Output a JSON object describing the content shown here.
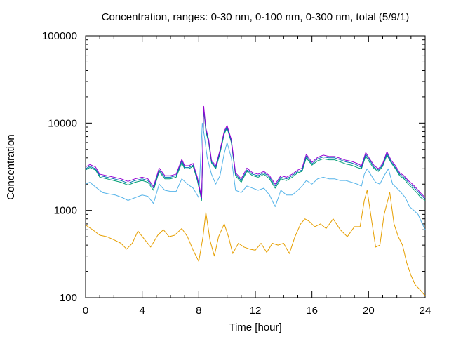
{
  "chart_data": {
    "type": "line",
    "title": "Concentration, ranges: 0-30 nm, 0-100 nm, 0-300 nm, total (5/9/1)",
    "xlabel": "Time [hour]",
    "ylabel": "Concentration",
    "xlim": [
      0,
      24
    ],
    "ylim": [
      100,
      100000
    ],
    "yscale": "log",
    "grid": false,
    "legend": "none",
    "x_ticks": [
      0,
      4,
      8,
      12,
      16,
      20,
      24
    ],
    "y_ticks": [
      100,
      1000,
      10000,
      100000
    ],
    "x_tick_labels": [
      "0",
      "4",
      "8",
      "12",
      "16",
      "20",
      "24"
    ],
    "y_tick_labels": [
      "100",
      "1000",
      "10000",
      "100000"
    ],
    "series": [
      {
        "color": "#e69f00",
        "x": [
          0,
          0.5,
          1,
          1.5,
          2,
          2.5,
          2.9,
          3.3,
          3.7,
          4.1,
          4.6,
          5.1,
          5.5,
          5.9,
          6.3,
          6.8,
          7.2,
          7.6,
          8.0,
          8.3,
          8.5,
          8.8,
          9.1,
          9.4,
          9.8,
          10.1,
          10.4,
          10.8,
          11.2,
          11.6,
          12.0,
          12.4,
          12.8,
          13.2,
          13.6,
          14.0,
          14.4,
          14.8,
          15.2,
          15.5,
          15.8,
          16.2,
          16.6,
          17.0,
          17.5,
          18.0,
          18.5,
          19.0,
          19.4,
          19.7,
          19.9,
          20.2,
          20.5,
          20.8,
          21.1,
          21.5,
          21.8,
          22.1,
          22.4,
          22.7,
          23.0,
          23.3,
          23.6,
          24.0
        ],
        "y": [
          680,
          600,
          520,
          500,
          460,
          420,
          360,
          420,
          580,
          480,
          380,
          520,
          600,
          500,
          520,
          620,
          500,
          350,
          260,
          500,
          950,
          450,
          300,
          500,
          700,
          500,
          320,
          420,
          380,
          360,
          350,
          420,
          330,
          420,
          400,
          420,
          320,
          500,
          700,
          800,
          750,
          650,
          700,
          620,
          800,
          600,
          500,
          650,
          650,
          1300,
          1700,
          800,
          380,
          400,
          900,
          1600,
          700,
          500,
          400,
          250,
          180,
          140,
          125,
          105
        ]
      },
      {
        "color": "#56b4e9",
        "x": [
          0,
          0.3,
          0.8,
          1.2,
          1.6,
          2.1,
          2.6,
          3.0,
          3.5,
          4.0,
          4.4,
          4.8,
          5.2,
          5.6,
          6.0,
          6.4,
          6.8,
          7.2,
          7.6,
          8.0,
          8.25,
          8.4,
          8.6,
          8.9,
          9.2,
          9.5,
          9.8,
          10.0,
          10.3,
          10.6,
          11.0,
          11.4,
          11.8,
          12.2,
          12.6,
          13.0,
          13.4,
          13.8,
          14.2,
          14.6,
          15.0,
          15.3,
          15.6,
          16.0,
          16.4,
          16.8,
          17.2,
          17.6,
          18.0,
          18.4,
          18.8,
          19.2,
          19.5,
          19.7,
          19.9,
          20.2,
          20.5,
          20.8,
          21.1,
          21.4,
          21.7,
          22.0,
          22.3,
          22.6,
          22.9,
          23.2,
          23.5,
          23.8,
          24.0
        ],
        "y": [
          2000,
          2100,
          1800,
          1600,
          1550,
          1500,
          1400,
          1300,
          1400,
          1500,
          1450,
          1200,
          2000,
          1700,
          1650,
          1650,
          2300,
          2000,
          1800,
          1400,
          10000,
          7000,
          4000,
          2600,
          2000,
          2500,
          4500,
          6000,
          4000,
          1700,
          1600,
          1900,
          1800,
          1700,
          1800,
          1500,
          1100,
          1700,
          1500,
          1500,
          1700,
          1900,
          2200,
          2000,
          2300,
          2400,
          2300,
          2300,
          2200,
          2200,
          2100,
          2000,
          1900,
          2600,
          3000,
          2500,
          2100,
          2000,
          2500,
          3000,
          2000,
          1800,
          1600,
          1400,
          1100,
          1000,
          900,
          700,
          600
        ]
      },
      {
        "color": "#009e73",
        "x": [
          0,
          0.3,
          0.7,
          1.0,
          1.5,
          2.0,
          2.5,
          3.0,
          3.5,
          4.0,
          4.4,
          4.8,
          5.2,
          5.6,
          6.0,
          6.4,
          6.8,
          7.0,
          7.3,
          7.6,
          7.9,
          8.2,
          8.35,
          8.5,
          8.7,
          8.9,
          9.2,
          9.5,
          9.8,
          10.0,
          10.3,
          10.6,
          11.0,
          11.4,
          11.8,
          12.2,
          12.6,
          13.0,
          13.4,
          13.8,
          14.2,
          14.6,
          15.0,
          15.3,
          15.6,
          16.0,
          16.4,
          16.8,
          17.2,
          17.6,
          18.0,
          18.4,
          18.8,
          19.2,
          19.5,
          19.8,
          20.1,
          20.4,
          20.7,
          21.0,
          21.3,
          21.6,
          21.9,
          22.2,
          22.5,
          22.8,
          23.1,
          23.4,
          23.7,
          24.0
        ],
        "y": [
          2900,
          3100,
          2900,
          2400,
          2300,
          2200,
          2100,
          1950,
          2100,
          2200,
          2100,
          1700,
          2800,
          2300,
          2300,
          2400,
          3500,
          3000,
          3000,
          3200,
          2200,
          1300,
          14500,
          8000,
          6000,
          3500,
          3000,
          4500,
          7500,
          8800,
          6000,
          2500,
          2100,
          2800,
          2500,
          2400,
          2600,
          2300,
          1800,
          2300,
          2200,
          2400,
          2700,
          2800,
          4000,
          3300,
          3700,
          3900,
          3800,
          3800,
          3600,
          3400,
          3300,
          3100,
          3000,
          4200,
          3500,
          3000,
          2800,
          3200,
          4300,
          3500,
          3000,
          2500,
          2300,
          2000,
          1800,
          1600,
          1400,
          1300
        ]
      },
      {
        "color": "#0072b2",
        "x": [
          0,
          0.3,
          0.7,
          1.0,
          1.5,
          2.0,
          2.5,
          3.0,
          3.5,
          4.0,
          4.4,
          4.8,
          5.2,
          5.6,
          6.0,
          6.4,
          6.8,
          7.0,
          7.3,
          7.6,
          7.9,
          8.2,
          8.35,
          8.5,
          8.7,
          8.9,
          9.2,
          9.5,
          9.8,
          10.0,
          10.3,
          10.6,
          11.0,
          11.4,
          11.8,
          12.2,
          12.6,
          13.0,
          13.4,
          13.8,
          14.2,
          14.6,
          15.0,
          15.3,
          15.6,
          16.0,
          16.4,
          16.8,
          17.2,
          17.6,
          18.0,
          18.4,
          18.8,
          19.2,
          19.5,
          19.8,
          20.1,
          20.4,
          20.7,
          21.0,
          21.3,
          21.6,
          21.9,
          22.2,
          22.5,
          22.8,
          23.1,
          23.4,
          23.7,
          24.0
        ],
        "y": [
          3000,
          3200,
          3000,
          2500,
          2400,
          2300,
          2200,
          2050,
          2200,
          2300,
          2200,
          1800,
          2900,
          2400,
          2400,
          2500,
          3700,
          3100,
          3100,
          3300,
          2300,
          1350,
          15000,
          8500,
          6200,
          3600,
          3100,
          4700,
          7800,
          9000,
          6200,
          2600,
          2200,
          2900,
          2600,
          2500,
          2700,
          2400,
          1900,
          2400,
          2300,
          2500,
          2800,
          2900,
          4200,
          3400,
          3900,
          4100,
          4000,
          4000,
          3800,
          3600,
          3500,
          3300,
          3100,
          4400,
          3700,
          3100,
          2900,
          3300,
          4500,
          3600,
          3100,
          2600,
          2400,
          2100,
          1900,
          1700,
          1500,
          1350
        ]
      },
      {
        "color": "#9400d3",
        "x": [
          0,
          0.3,
          0.7,
          1.0,
          1.5,
          2.0,
          2.5,
          3.0,
          3.5,
          4.0,
          4.4,
          4.8,
          5.2,
          5.6,
          6.0,
          6.4,
          6.8,
          7.0,
          7.3,
          7.6,
          7.9,
          8.2,
          8.35,
          8.5,
          8.7,
          8.9,
          9.2,
          9.5,
          9.8,
          10.0,
          10.3,
          10.6,
          11.0,
          11.4,
          11.8,
          12.2,
          12.6,
          13.0,
          13.4,
          13.8,
          14.2,
          14.6,
          15.0,
          15.3,
          15.6,
          16.0,
          16.4,
          16.8,
          17.2,
          17.6,
          18.0,
          18.4,
          18.8,
          19.2,
          19.5,
          19.8,
          20.1,
          20.4,
          20.7,
          21.0,
          21.3,
          21.6,
          21.9,
          22.2,
          22.5,
          22.8,
          23.1,
          23.4,
          23.7,
          24.0
        ],
        "y": [
          3150,
          3350,
          3150,
          2600,
          2500,
          2400,
          2300,
          2150,
          2300,
          2400,
          2300,
          1880,
          3050,
          2500,
          2500,
          2600,
          3850,
          3250,
          3250,
          3450,
          2400,
          1400,
          15600,
          8800,
          6500,
          3750,
          3250,
          4900,
          8100,
          9400,
          6500,
          2700,
          2300,
          3050,
          2700,
          2600,
          2800,
          2500,
          2000,
          2500,
          2400,
          2600,
          2900,
          3050,
          4400,
          3550,
          4050,
          4300,
          4150,
          4150,
          3950,
          3750,
          3650,
          3450,
          3250,
          4600,
          3850,
          3250,
          3000,
          3450,
          4700,
          3750,
          3250,
          2700,
          2500,
          2200,
          2000,
          1780,
          1570,
          1400
        ]
      }
    ]
  }
}
